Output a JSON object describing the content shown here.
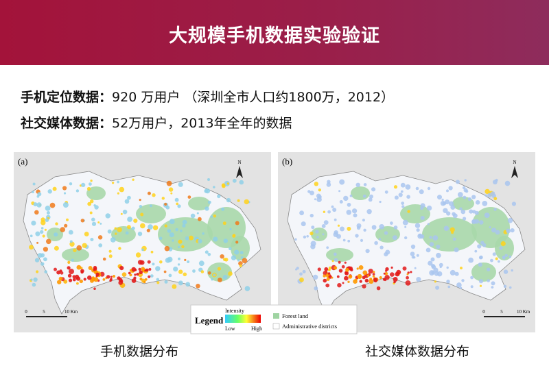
{
  "header": {
    "title": "大规模手机数据实验验证"
  },
  "bullets": [
    {
      "label": "手机定位数据：",
      "text": "920 万用户 （深圳全市人口约1800万，2012）"
    },
    {
      "label": "社交媒体数据：",
      "text": "52万用户，2013年全年的数据"
    }
  ],
  "maps": [
    {
      "panel": "(a)",
      "caption": "手机数据分布"
    },
    {
      "panel": "(b)",
      "caption": "社交媒体数据分布"
    }
  ],
  "north": "N",
  "scale_labels": [
    "0",
    "5",
    "10 Km"
  ],
  "legend": {
    "title": "Legend",
    "intensity": "Intensity",
    "low": "Low",
    "high": "High",
    "forest": "Forest land",
    "districts": "Administrative districts"
  }
}
